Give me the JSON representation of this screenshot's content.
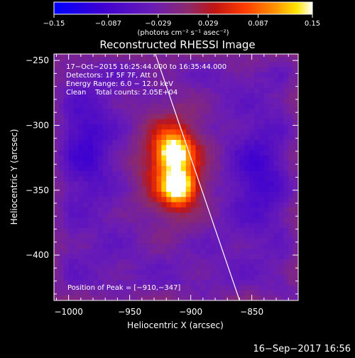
{
  "chart_data": {
    "type": "heatmap",
    "title": "Reconstructed RHESSI Image",
    "xlabel": "Heliocentric X (arcsec)",
    "ylabel": "Heliocentric Y (arcsec)",
    "xlim": [
      -1012,
      -812
    ],
    "ylim": [
      -435,
      -245
    ],
    "x_ticks": [
      -1000,
      -950,
      -900,
      -850
    ],
    "x_tick_labels": [
      "−1000",
      "−950",
      "−900",
      "−850"
    ],
    "y_ticks": [
      -400,
      -350,
      -300,
      -250
    ],
    "y_tick_labels": [
      "−400",
      "−350",
      "−300",
      "−250"
    ],
    "colorbar": {
      "range": [
        -0.15,
        0.15
      ],
      "ticks": [
        -0.15,
        -0.087,
        -0.029,
        0.029,
        0.087,
        0.15
      ],
      "tick_labels": [
        "−0.15",
        "−0.087",
        "−0.029",
        "0.029",
        "0.087",
        "0.15"
      ],
      "units": "(photons cm⁻² s⁻¹ asec⁻²)"
    },
    "annotations": [
      "17−Oct−2015 16:25:44.000 to 16:35:44.000",
      "Detectors: 1F 5F 7F, Att 0",
      "Energy Range: 6.0 − 12.0 keV",
      "Clean    Total counts: 2.05E+04"
    ],
    "peak_label": "Position of Peak = [−910,−347]",
    "peak": [
      -910,
      -347
    ],
    "limb_line": [
      [
        -929,
        -245
      ],
      [
        -860,
        -435
      ]
    ],
    "sources": [
      {
        "x": -910,
        "y": -347,
        "amp": 0.15,
        "sx": 9,
        "sy": 9
      },
      {
        "x": -914,
        "y": -320,
        "amp": 0.13,
        "sx": 9,
        "sy": 9
      },
      {
        "x": -915,
        "y": -330,
        "amp": 0.11,
        "sx": 20,
        "sy": 30
      }
    ],
    "negative_wells": [
      {
        "x": -985,
        "y": -315,
        "amp": -0.05,
        "sx": 14,
        "sy": 25
      },
      {
        "x": -845,
        "y": -338,
        "amp": -0.05,
        "sx": 14,
        "sy": 25
      }
    ]
  },
  "footer": {
    "timestamp": "16−Sep−2017 16:56"
  }
}
